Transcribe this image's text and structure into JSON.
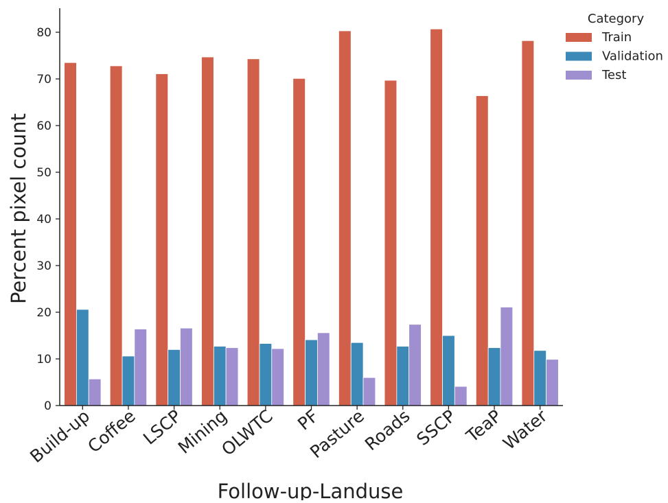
{
  "chart_data": {
    "type": "bar",
    "xlabel": "Follow-up-Landuse",
    "ylabel": "Percent pixel count",
    "ylim": [
      0,
      85
    ],
    "yticks": [
      0,
      10,
      20,
      30,
      40,
      50,
      60,
      70,
      80
    ],
    "grid": false,
    "legend": {
      "title": "Category",
      "placement": "top-right"
    },
    "categories": [
      "Build-up",
      "Coffee",
      "LSCP",
      "Mining",
      "OLWTC",
      "PF",
      "Pasture",
      "Roads",
      "SSCP",
      "TeaP",
      "Water"
    ],
    "series": [
      {
        "name": "Train",
        "color": "#d1604b",
        "values": [
          73.5,
          72.8,
          71.1,
          74.7,
          74.3,
          70.1,
          80.3,
          69.7,
          80.7,
          66.4,
          78.2
        ]
      },
      {
        "name": "Validation",
        "color": "#3c88b6",
        "values": [
          20.6,
          10.6,
          12.0,
          12.7,
          13.3,
          14.1,
          13.5,
          12.7,
          15.0,
          12.4,
          11.8
        ]
      },
      {
        "name": "Test",
        "color": "#9f8fd1",
        "values": [
          5.7,
          16.4,
          16.6,
          12.4,
          12.2,
          15.6,
          6.0,
          17.4,
          4.1,
          21.1,
          9.9
        ]
      }
    ]
  }
}
